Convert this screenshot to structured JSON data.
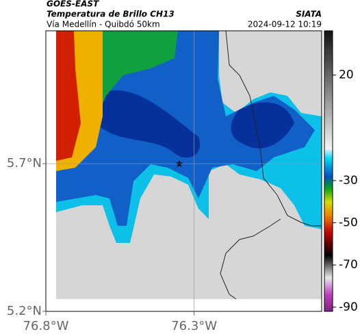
{
  "header": {
    "title": "GOES-EAST",
    "subtitle": "Temperatura de Brillo CH13",
    "route": "Vía Medellín - Quibdó 50km",
    "source": "SIATA",
    "timestamp": "2024-09-12 10:19"
  },
  "chart_data": {
    "type": "map",
    "xlim": [
      -76.8,
      -75.87
    ],
    "ylim": [
      5.2,
      6.15
    ],
    "xticks": [
      {
        "value": -76.8,
        "label": "76.8°W"
      },
      {
        "value": -76.3,
        "label": "76.3°W"
      }
    ],
    "yticks": [
      {
        "value": 5.7,
        "label": "5.7°N"
      },
      {
        "value": 5.2,
        "label": "5.2°N"
      }
    ],
    "grid": true,
    "colorbar": {
      "clim": [
        -92,
        41
      ],
      "ticks": [
        20,
        -30,
        -50,
        -70,
        -90
      ]
    }
  }
}
